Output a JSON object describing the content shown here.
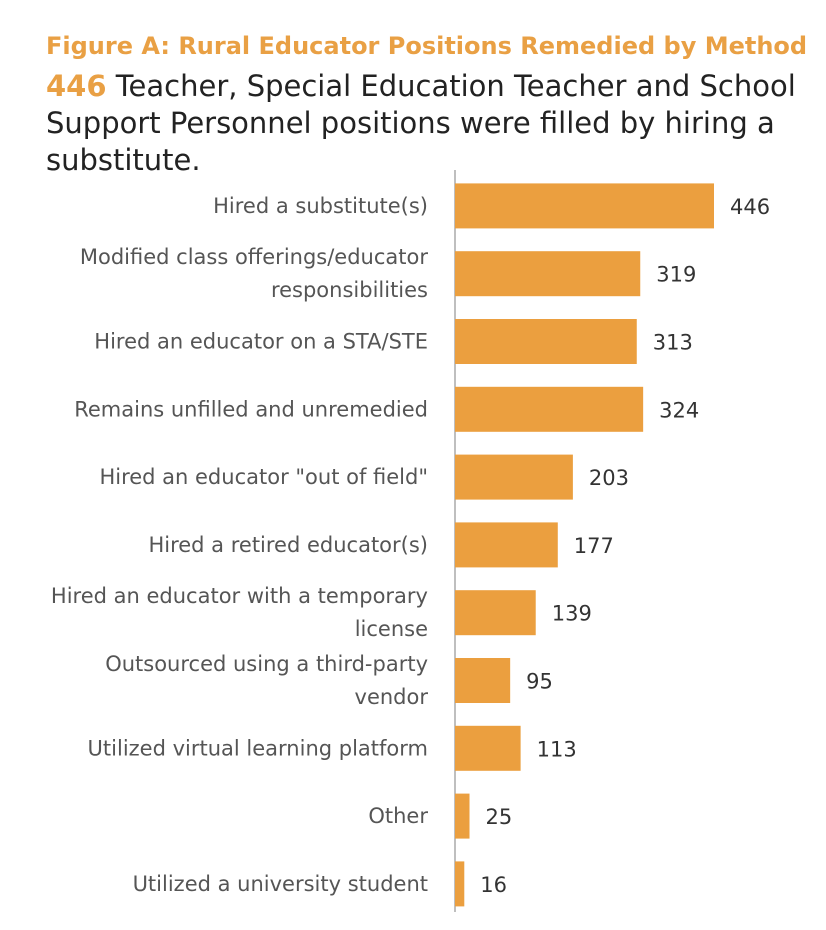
{
  "title": "Figure A: Rural Educator Positions Remedied by Method",
  "subtitle": {
    "highlight": "446",
    "text": " Teacher, Special Education Teacher and School Support Personnel positions were filled by hiring a substitute."
  },
  "colors": {
    "accent": "#E9A044",
    "bar": "#EB9F3F",
    "axis": "#BFBFBF"
  },
  "chart_data": {
    "type": "bar",
    "orientation": "horizontal",
    "categories": [
      "Hired a substitute(s)",
      "Modified class offerings/educator responsibilities",
      "Hired an educator on a STA/STE",
      "Remains unfilled and unremedied",
      "Hired an educator \"out of field\"",
      "Hired a retired educator(s)",
      "Hired an educator with a temporary license",
      "Outsourced using a third-party vendor",
      "Utilized virtual learning platform",
      "Other",
      "Utilized a university student"
    ],
    "values": [
      446,
      319,
      313,
      324,
      203,
      177,
      139,
      95,
      113,
      25,
      16
    ],
    "data_labels": true,
    "grid": false,
    "legend": "none"
  }
}
